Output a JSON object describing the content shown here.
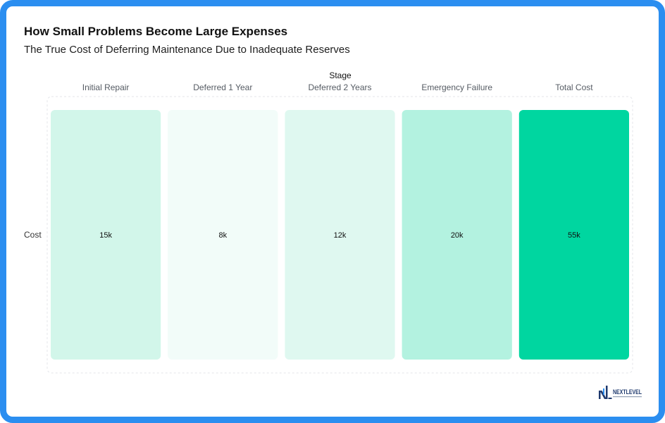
{
  "title": "How Small Problems Become Large Expenses",
  "subtitle": "The True Cost of Deferring Maintenance Due to Inadequate Reserves",
  "logo_text": "NEXTLEVEL",
  "colors": {
    "frame": "#2b8ef0",
    "scale": [
      "#f2fcf9",
      "#dff8f0",
      "#d2f6ea",
      "#b3f2e0",
      "#00d6a0"
    ]
  },
  "chart_data": {
    "type": "heatmap",
    "title": "How Small Problems Become Large Expenses",
    "subtitle": "The True Cost of Deferring Maintenance Due to Inadequate Reserves",
    "xlabel": "Stage",
    "ylabel": "",
    "x": [
      "Initial Repair",
      "Deferred 1 Year",
      "Deferred 2 Years",
      "Emergency Failure",
      "Total Cost"
    ],
    "y": [
      "Cost"
    ],
    "values": [
      [
        15,
        8,
        12,
        20,
        55
      ]
    ],
    "value_labels": [
      [
        "15k",
        "8k",
        "12k",
        "20k",
        "55k"
      ]
    ],
    "x_axis_position": "top",
    "grid": false
  }
}
